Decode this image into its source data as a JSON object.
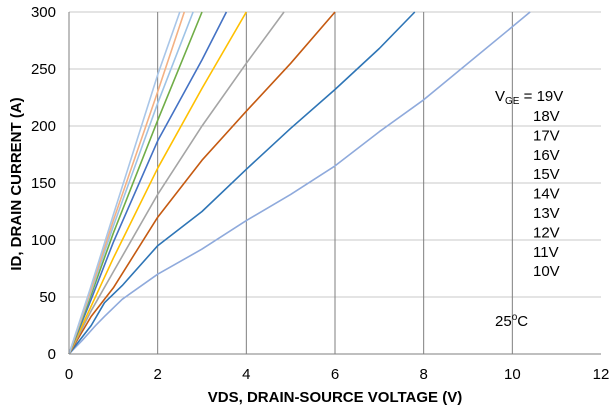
{
  "chart_data": {
    "type": "line",
    "xlabel": "VDS, DRAIN-SOURCE VOLTAGE (V)",
    "ylabel": "ID, DRAIN CURRENT (A)",
    "xlim": [
      0,
      12
    ],
    "ylim": [
      0,
      300
    ],
    "x_ticks": [
      "0",
      "2",
      "4",
      "6",
      "8",
      "10",
      "12"
    ],
    "y_ticks": [
      "0",
      "50",
      "100",
      "150",
      "200",
      "250",
      "300"
    ],
    "grid": "both",
    "legend_placement": "right",
    "legend_header": {
      "prefix": "V",
      "sub": "GE",
      "suffix": " = 19V"
    },
    "legend_labels": [
      "18V",
      "17V",
      "16V",
      "15V",
      "14V",
      "13V",
      "12V",
      "11V",
      "10V"
    ],
    "annotation": {
      "value": "25",
      "sup": "o",
      "unit": "C"
    },
    "series": [
      {
        "name": "10V",
        "color": "#8faadc",
        "points": [
          [
            0,
            0
          ],
          [
            0.3,
            12
          ],
          [
            0.6,
            25
          ],
          [
            0.8,
            33
          ],
          [
            1.2,
            48
          ],
          [
            2,
            70
          ],
          [
            3,
            92
          ],
          [
            4,
            117
          ],
          [
            5,
            140
          ],
          [
            6,
            165
          ],
          [
            7,
            195
          ],
          [
            8,
            223
          ],
          [
            9,
            255
          ],
          [
            10,
            287
          ],
          [
            10.4,
            300
          ]
        ]
      },
      {
        "name": "11V",
        "color": "#2e75b6",
        "points": [
          [
            0,
            0
          ],
          [
            0.5,
            25
          ],
          [
            0.8,
            45
          ],
          [
            1.2,
            60
          ],
          [
            2,
            95
          ],
          [
            3,
            125
          ],
          [
            4,
            162
          ],
          [
            5,
            198
          ],
          [
            6,
            232
          ],
          [
            7,
            268
          ],
          [
            7.8,
            300
          ]
        ]
      },
      {
        "name": "12V",
        "color": "#c55a11",
        "points": [
          [
            0,
            0
          ],
          [
            0.5,
            33
          ],
          [
            1,
            58
          ],
          [
            2,
            120
          ],
          [
            3,
            170
          ],
          [
            4,
            213
          ],
          [
            5,
            255
          ],
          [
            6,
            300
          ]
        ]
      },
      {
        "name": "13V",
        "color": "#a5a5a5",
        "points": [
          [
            0,
            0
          ],
          [
            0.5,
            38
          ],
          [
            1,
            72
          ],
          [
            2,
            140
          ],
          [
            3,
            200
          ],
          [
            4,
            255
          ],
          [
            4.85,
            300
          ]
        ]
      },
      {
        "name": "14V",
        "color": "#ffc000",
        "points": [
          [
            0,
            0
          ],
          [
            0.5,
            42
          ],
          [
            1,
            84
          ],
          [
            2,
            163
          ],
          [
            3,
            233
          ],
          [
            4,
            300
          ]
        ]
      },
      {
        "name": "15V",
        "color": "#4472c4",
        "points": [
          [
            0,
            0
          ],
          [
            0.5,
            48
          ],
          [
            1,
            98
          ],
          [
            2,
            187
          ],
          [
            3,
            258
          ],
          [
            3.55,
            300
          ]
        ]
      },
      {
        "name": "16V",
        "color": "#70ad47",
        "points": [
          [
            0,
            0
          ],
          [
            0.5,
            52
          ],
          [
            1,
            106
          ],
          [
            2,
            205
          ],
          [
            3,
            300
          ]
        ]
      },
      {
        "name": "17V",
        "color": "#9dc3e6",
        "points": [
          [
            0,
            0
          ],
          [
            0.5,
            55
          ],
          [
            1,
            112
          ],
          [
            2,
            220
          ],
          [
            2.8,
            300
          ]
        ]
      },
      {
        "name": "18V",
        "color": "#f4b183",
        "points": [
          [
            0,
            0
          ],
          [
            0.5,
            57
          ],
          [
            1,
            117
          ],
          [
            2,
            230
          ],
          [
            2.6,
            300
          ]
        ]
      },
      {
        "name": "19V",
        "color": "#a9c6e8",
        "points": [
          [
            0,
            0
          ],
          [
            0.5,
            60
          ],
          [
            1,
            122
          ],
          [
            2,
            245
          ],
          [
            2.5,
            300
          ]
        ]
      }
    ]
  }
}
